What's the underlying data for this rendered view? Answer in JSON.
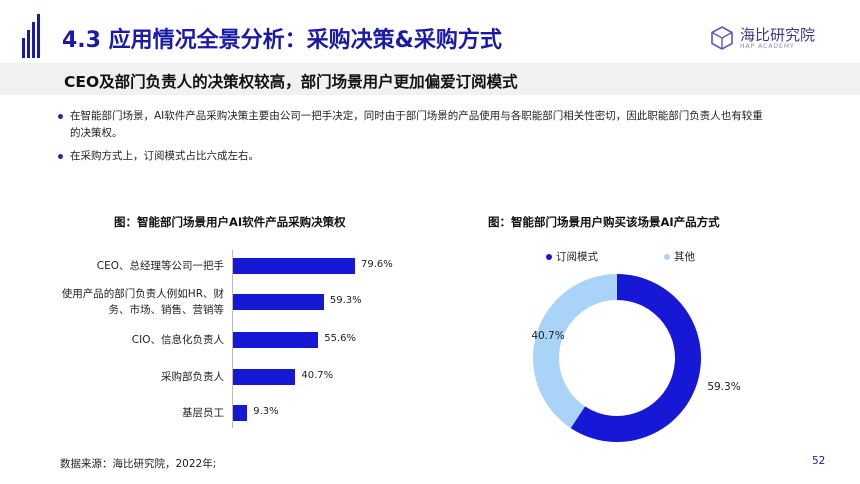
{
  "header": {
    "title": "4.3 应用情况全景分析：采购决策&采购方式",
    "brand_name": "海比研究院",
    "brand_sub": "HAP ACADEMY"
  },
  "subtitle": "CEO及部门负责人的决策权较高，部门场景用户更加偏爱订阅模式",
  "bullets": [
    "在智能部门场景，AI软件产品采购决策主要由公司一把手决定，同时由于部门场景的产品使用与各职能部门相关性密切，因此职能部门负责人也有较重的决策权。",
    "在采购方式上，订阅模式占比六成左右。"
  ],
  "colors": {
    "primary": "#1717d6",
    "secondary": "#a9d4f7",
    "title": "#1a1aa8"
  },
  "chart_data": [
    {
      "type": "bar",
      "orientation": "horizontal",
      "title": "图：智能部门场景用户AI软件产品采购决策权",
      "categories": [
        "CEO、总经理等公司一把手",
        "使用产品的部门负责人例如HR、财务、市场、销售、营销等",
        "CIO、信息化负责人",
        "采购部负责人",
        "基层员工"
      ],
      "category_lines": [
        [
          "CEO、总经理等公司一把手"
        ],
        [
          "使用产品的部门负责人例如HR、财",
          "务、市场、销售、营销等"
        ],
        [
          "CIO、信息化负责人"
        ],
        [
          "采购部负责人"
        ],
        [
          "基层员工"
        ]
      ],
      "values": [
        79.6,
        59.3,
        55.6,
        40.7,
        9.3
      ],
      "value_labels": [
        "79.6%",
        "59.3%",
        "55.6%",
        "40.7%",
        "9.3%"
      ],
      "xlim": [
        0,
        100
      ],
      "grid": false
    },
    {
      "type": "pie",
      "donut": true,
      "title": "图：智能部门场景用户购买该场景AI产品方式",
      "labels": [
        "订阅模式",
        "其他"
      ],
      "values": [
        59.3,
        40.7
      ],
      "value_labels": [
        "59.3%",
        "40.7%"
      ],
      "legend": "top"
    }
  ],
  "footer": {
    "source": "数据来源：海比研究院，2022年;",
    "page": "52"
  }
}
